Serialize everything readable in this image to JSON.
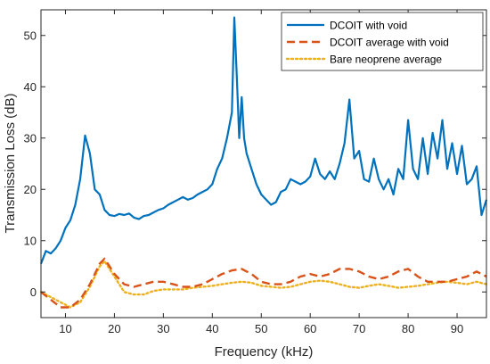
{
  "chart_data": {
    "type": "line",
    "xlabel": "Frequency (kHz)",
    "ylabel": "Transmission Loss (dB)",
    "xlim": [
      5,
      96
    ],
    "ylim": [
      -5,
      55
    ],
    "xticks": [
      10,
      20,
      30,
      40,
      50,
      60,
      70,
      80,
      90
    ],
    "yticks": [
      0,
      10,
      20,
      30,
      40,
      50
    ],
    "grid": false,
    "legend_position": "top-right",
    "series": [
      {
        "name": "DCOIT with void",
        "color": "#0072BD",
        "style": "solid",
        "x": [
          5,
          6,
          7,
          8,
          9,
          10,
          11,
          12,
          13,
          14,
          15,
          16,
          17,
          18,
          19,
          20,
          21,
          22,
          23,
          24,
          25,
          26,
          27,
          28,
          29,
          30,
          31,
          32,
          33,
          34,
          35,
          36,
          37,
          38,
          39,
          40,
          41,
          42,
          43,
          44,
          44.5,
          45,
          45.5,
          46,
          46.5,
          47,
          48,
          49,
          50,
          51,
          52,
          53,
          54,
          55,
          56,
          57,
          58,
          59,
          60,
          61,
          62,
          63,
          64,
          65,
          66,
          67,
          68,
          69,
          70,
          71,
          72,
          73,
          74,
          75,
          76,
          77,
          78,
          79,
          80,
          81,
          82,
          83,
          84,
          85,
          86,
          87,
          88,
          89,
          90,
          91,
          92,
          93,
          94,
          95,
          96
        ],
        "values": [
          5.5,
          8,
          7.5,
          8.5,
          10,
          12.5,
          14,
          17,
          22,
          30.5,
          27,
          20,
          19,
          16,
          15,
          14.8,
          15.2,
          15,
          15.3,
          14.5,
          14.2,
          14.8,
          15,
          15.5,
          16,
          16.3,
          17,
          17.5,
          18,
          18.5,
          18,
          18.3,
          19,
          19.5,
          20,
          21,
          24,
          26,
          30,
          35,
          53.5,
          42,
          30,
          38,
          30,
          27,
          24,
          21,
          19,
          18,
          17,
          17.5,
          19.5,
          20,
          22,
          21.5,
          21,
          21.5,
          22.5,
          26,
          23,
          22,
          23.5,
          22,
          25,
          29,
          37.5,
          26,
          27.5,
          22,
          21.5,
          26,
          22,
          20,
          22,
          19,
          24,
          22,
          33.5,
          24,
          22,
          30,
          23,
          31,
          26,
          33.5,
          24,
          29,
          23,
          28.5,
          21,
          22,
          24.5,
          15,
          18
        ]
      },
      {
        "name": "DCOIT average with void",
        "color": "#D95319",
        "style": "dashed",
        "x": [
          5,
          7,
          9,
          11,
          13,
          15,
          17,
          18,
          20,
          22,
          24,
          26,
          28,
          30,
          32,
          34,
          36,
          38,
          40,
          42,
          44,
          46,
          48,
          50,
          52,
          54,
          56,
          58,
          60,
          62,
          64,
          66,
          68,
          70,
          72,
          74,
          76,
          78,
          80,
          82,
          84,
          86,
          88,
          90,
          92,
          94,
          96
        ],
        "values": [
          0,
          -1.5,
          -3,
          -3,
          -1.5,
          1.5,
          5.5,
          6.5,
          3.5,
          1.5,
          1,
          1.5,
          2,
          2,
          1.5,
          1,
          1,
          1.5,
          2.5,
          3.5,
          4.2,
          4.5,
          3.5,
          2,
          1.5,
          1.5,
          2,
          3,
          3.5,
          3,
          3.5,
          4.5,
          4.5,
          4,
          3,
          2.5,
          3,
          4,
          4.5,
          3,
          2,
          2,
          2,
          2.5,
          3,
          4,
          3
        ]
      },
      {
        "name": "Bare neoprene average",
        "color": "#EDB120",
        "style": "dotted",
        "x": [
          5,
          7,
          9,
          11,
          13,
          15,
          17,
          18,
          20,
          22,
          24,
          26,
          28,
          30,
          32,
          34,
          36,
          38,
          40,
          42,
          44,
          46,
          48,
          50,
          52,
          54,
          56,
          58,
          60,
          62,
          64,
          66,
          68,
          70,
          72,
          74,
          76,
          78,
          80,
          82,
          84,
          86,
          88,
          90,
          92,
          94,
          96
        ],
        "values": [
          0,
          -1,
          -2,
          -3,
          -2,
          1,
          5,
          6,
          3,
          0,
          -0.5,
          -0.5,
          0.2,
          0.5,
          0.5,
          0.5,
          0.8,
          1,
          1.2,
          1.5,
          1.8,
          2,
          1.8,
          1.2,
          1,
          0.8,
          1,
          1.5,
          2,
          2.2,
          2,
          1.5,
          1,
          0.8,
          1.2,
          1.5,
          1.2,
          0.8,
          1,
          1.2,
          1.5,
          1.8,
          2,
          1.8,
          1.5,
          2,
          1.5
        ]
      }
    ]
  }
}
